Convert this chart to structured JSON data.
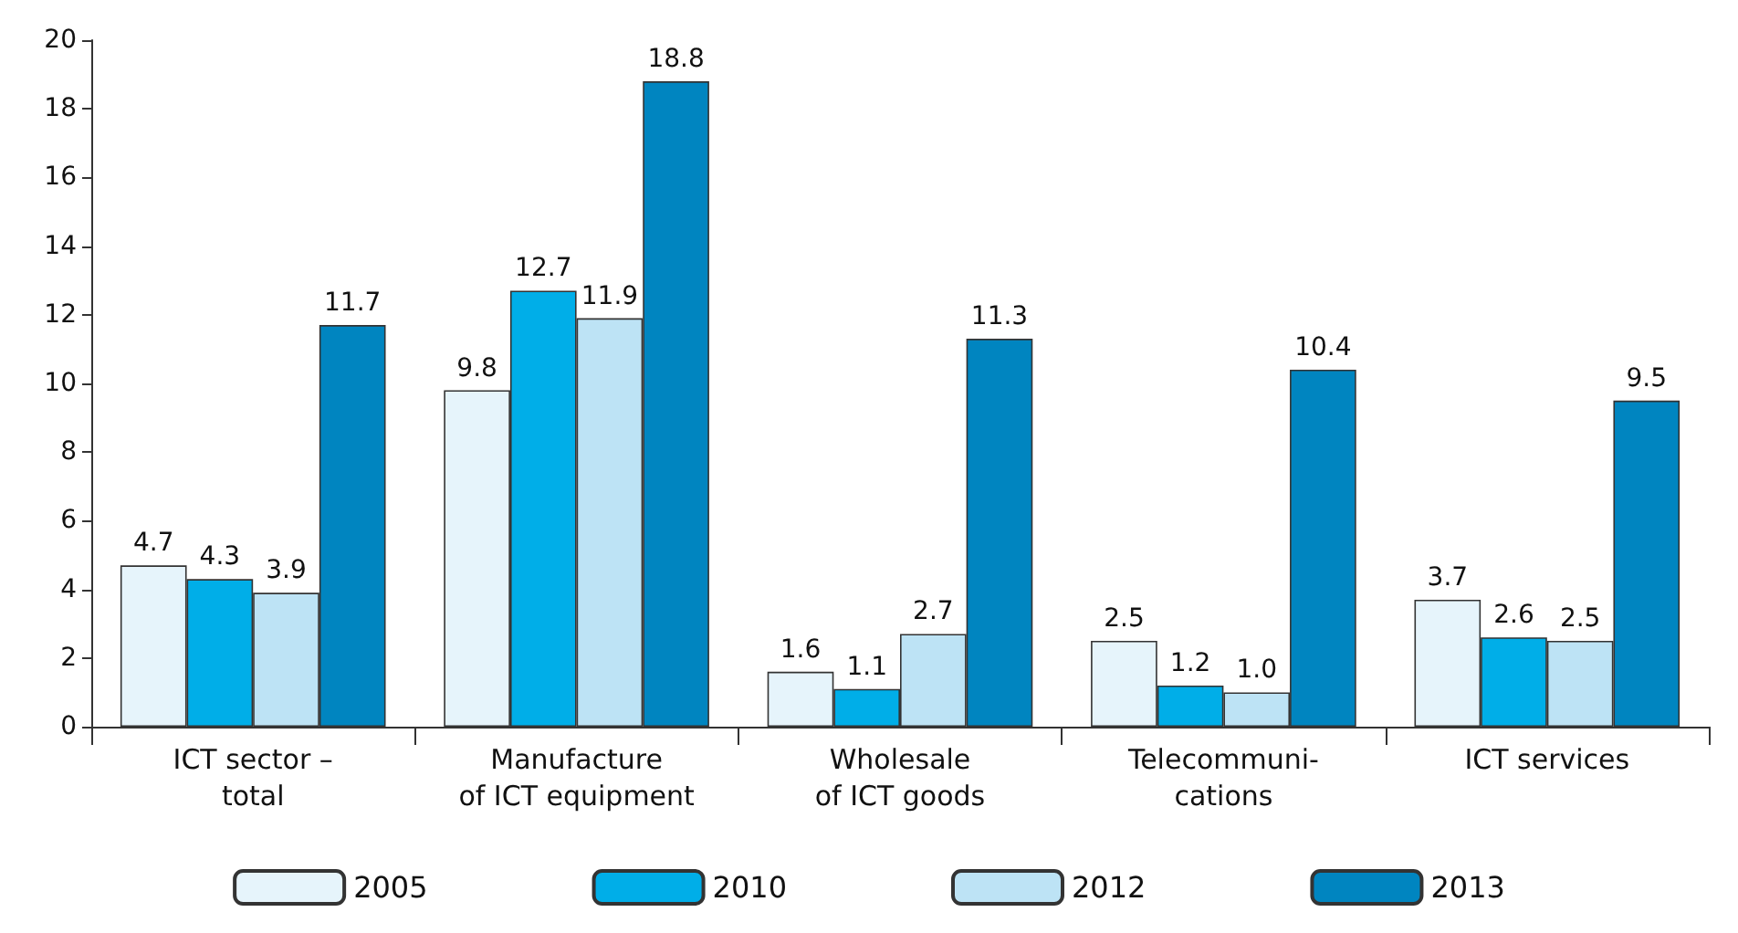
{
  "chart_data": {
    "type": "bar",
    "categories": [
      "ICT sector –\ntotal",
      "Manufacture\nof ICT equipment",
      "Wholesale\nof ICT goods",
      "Telecommuni-\ncations",
      "ICT services"
    ],
    "series": [
      {
        "name": "2005",
        "color": "#e6f4fb",
        "values": [
          4.7,
          9.8,
          1.6,
          2.5,
          3.7
        ],
        "value_labels": [
          "4.7",
          "9.8",
          "1.6",
          "2.5",
          "3.7"
        ]
      },
      {
        "name": "2010",
        "color": "#00aee8",
        "values": [
          4.3,
          12.7,
          1.1,
          1.2,
          2.6
        ],
        "value_labels": [
          "4.3",
          "12.7",
          "1.1",
          "1.2",
          "2.6"
        ]
      },
      {
        "name": "2012",
        "color": "#bde3f5",
        "values": [
          3.9,
          11.9,
          2.7,
          1.0,
          2.5
        ],
        "value_labels": [
          "3.9",
          "11.9",
          "2.7",
          "1.0",
          "2.5"
        ]
      },
      {
        "name": "2013",
        "color": "#0085c0",
        "values": [
          11.7,
          18.8,
          11.3,
          10.4,
          9.5
        ],
        "value_labels": [
          "11.7",
          "18.8",
          "11.3",
          "10.4",
          "9.5"
        ]
      }
    ],
    "ylim": [
      0,
      20
    ],
    "yticks": [
      0,
      2,
      4,
      6,
      8,
      10,
      12,
      14,
      16,
      18,
      20
    ],
    "grid": false,
    "legend": "bottom"
  }
}
